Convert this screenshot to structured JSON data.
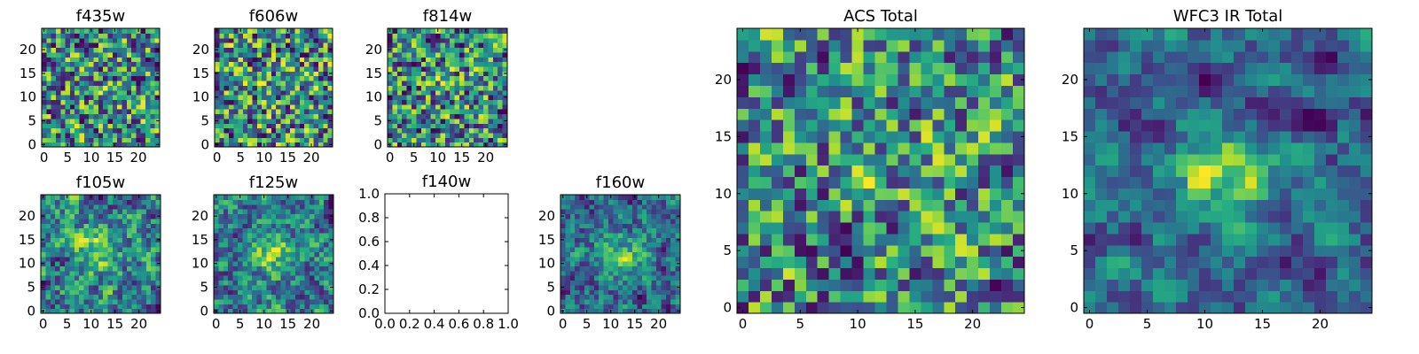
{
  "chart_data": [
    {
      "type": "heatmap",
      "title": "f435w",
      "grid_size": 25,
      "colormap": "viridis",
      "empty": false,
      "xticks": [
        "0",
        "5",
        "10",
        "15",
        "20"
      ],
      "yticks": [
        "0",
        "5",
        "10",
        "15",
        "20"
      ],
      "seed": 11,
      "smooth": 0.05,
      "blob": {
        "cx": 12,
        "cy": 12,
        "sigma": 3,
        "amplitude": 0.05
      }
    },
    {
      "type": "heatmap",
      "title": "f606w",
      "grid_size": 25,
      "colormap": "viridis",
      "empty": false,
      "xticks": [
        "0",
        "5",
        "10",
        "15",
        "20"
      ],
      "yticks": [
        "0",
        "5",
        "10",
        "15",
        "20"
      ],
      "seed": 23,
      "smooth": 0.05,
      "blob": {
        "cx": 12,
        "cy": 12,
        "sigma": 3,
        "amplitude": 0.05
      }
    },
    {
      "type": "heatmap",
      "title": "f814w",
      "grid_size": 25,
      "colormap": "viridis",
      "empty": false,
      "xticks": [
        "0",
        "5",
        "10",
        "15",
        "20"
      ],
      "yticks": [
        "0",
        "5",
        "10",
        "15",
        "20"
      ],
      "seed": 37,
      "smooth": 0.05,
      "blob": {
        "cx": 12,
        "cy": 13,
        "sigma": 3,
        "amplitude": 0.08
      }
    },
    {
      "type": "heatmap",
      "title": "f105w",
      "grid_size": 25,
      "colormap": "viridis",
      "empty": false,
      "xticks": [
        "0",
        "5",
        "10",
        "15",
        "20"
      ],
      "yticks": [
        "0",
        "5",
        "10",
        "15",
        "20"
      ],
      "seed": 41,
      "smooth": 0.5,
      "blob": {
        "cx": 12,
        "cy": 13,
        "sigma": 3.5,
        "amplitude": 0.3
      }
    },
    {
      "type": "heatmap",
      "title": "f125w",
      "grid_size": 25,
      "colormap": "viridis",
      "empty": false,
      "xticks": [
        "0",
        "5",
        "10",
        "15",
        "20"
      ],
      "yticks": [
        "0",
        "5",
        "10",
        "15",
        "20"
      ],
      "seed": 53,
      "smooth": 0.5,
      "blob": {
        "cx": 12,
        "cy": 12,
        "sigma": 3.5,
        "amplitude": 0.3
      }
    },
    {
      "type": "heatmap",
      "title": "f140w",
      "empty": true,
      "xticks": [
        "0.0",
        "0.2",
        "0.4",
        "0.6",
        "0.8",
        "1.0"
      ],
      "yticks": [
        "0.0",
        "0.2",
        "0.4",
        "0.6",
        "0.8",
        "1.0"
      ],
      "xlim": [
        0.0,
        1.0
      ],
      "ylim": [
        0.0,
        1.0
      ]
    },
    {
      "type": "heatmap",
      "title": "f160w",
      "grid_size": 25,
      "colormap": "viridis",
      "empty": false,
      "xticks": [
        "0",
        "5",
        "10",
        "15",
        "20"
      ],
      "yticks": [
        "0",
        "5",
        "10",
        "15",
        "20"
      ],
      "seed": 67,
      "smooth": 0.5,
      "blob": {
        "cx": 13,
        "cy": 12,
        "sigma": 3.5,
        "amplitude": 0.35
      }
    },
    {
      "type": "heatmap",
      "title": "ACS Total",
      "grid_size": 25,
      "colormap": "viridis",
      "empty": false,
      "xticks": [
        "0",
        "5",
        "10",
        "15",
        "20"
      ],
      "yticks": [
        "0",
        "5",
        "10",
        "15",
        "20"
      ],
      "seed": 79,
      "smooth": 0.25,
      "blob": {
        "cx": 13,
        "cy": 13,
        "sigma": 3,
        "amplitude": 0.12
      }
    },
    {
      "type": "heatmap",
      "title": "WFC3 IR Total",
      "grid_size": 25,
      "colormap": "viridis",
      "empty": false,
      "xticks": [
        "0",
        "5",
        "10",
        "15",
        "20"
      ],
      "yticks": [
        "0",
        "5",
        "10",
        "15",
        "20"
      ],
      "seed": 97,
      "smooth": 0.7,
      "blob": {
        "cx": 12,
        "cy": 12,
        "sigma": 3,
        "amplitude": 0.45
      }
    }
  ]
}
